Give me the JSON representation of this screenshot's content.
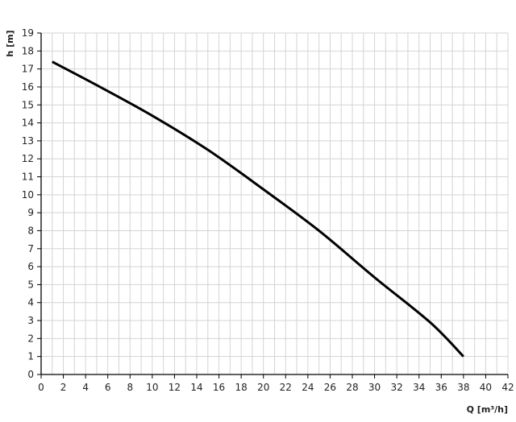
{
  "chart_data": {
    "type": "line",
    "title": "",
    "xlabel": "Q [m³/h]",
    "ylabel": "h [m]",
    "xlim": [
      0,
      42
    ],
    "ylim": [
      0,
      19
    ],
    "x_ticks": [
      0,
      2,
      4,
      6,
      8,
      10,
      12,
      14,
      16,
      18,
      20,
      22,
      24,
      26,
      28,
      30,
      32,
      34,
      36,
      38,
      40,
      42
    ],
    "y_ticks": [
      0,
      1,
      2,
      3,
      4,
      5,
      6,
      7,
      8,
      9,
      10,
      11,
      12,
      13,
      14,
      15,
      16,
      17,
      18,
      19
    ],
    "grid": true,
    "grid_step_x": 1,
    "grid_step_y": 1,
    "series": [
      {
        "color": "#000000",
        "x": [
          1,
          5,
          10,
          15,
          20,
          25,
          30,
          35,
          38
        ],
        "y": [
          17.4,
          16.1,
          14.4,
          12.5,
          10.3,
          8.0,
          5.4,
          2.9,
          1.0
        ]
      }
    ],
    "colors": {
      "grid": "#d4d4d4",
      "axis": "#000000"
    }
  }
}
